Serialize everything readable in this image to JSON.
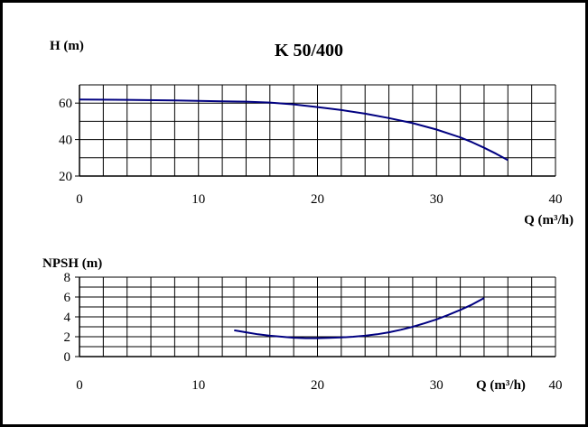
{
  "chart_data": [
    {
      "id": "head",
      "type": "line",
      "title": "K 50/400",
      "ylabel": "H (m)",
      "xlabel": "Q (m³/h)",
      "xlim": [
        0,
        40
      ],
      "ylim": [
        20,
        70
      ],
      "x_ticks": [
        0,
        10,
        20,
        30,
        40
      ],
      "y_ticks": [
        20,
        40,
        60
      ],
      "x_tick_labels": [
        "0",
        "10",
        "20",
        "30",
        "40"
      ],
      "y_tick_labels": [
        "20",
        "40",
        "60"
      ],
      "grid": true,
      "grid_x_step": 2,
      "grid_y_step": 10,
      "line_color": "#000080",
      "series": [
        {
          "x": [
            0,
            4,
            8,
            12,
            14,
            16,
            18,
            20,
            22,
            24,
            26,
            28,
            30,
            32,
            33,
            34,
            35,
            36
          ],
          "y": [
            62,
            61.8,
            61.5,
            61,
            60.8,
            60.3,
            59.3,
            57.8,
            56.2,
            54.2,
            51.8,
            49,
            45.5,
            41.2,
            38.5,
            35.5,
            32.3,
            28.7
          ]
        }
      ]
    },
    {
      "id": "npsh",
      "type": "line",
      "title": "",
      "ylabel": "NPSH (m)",
      "xlabel": "Q (m³/h)",
      "xlim": [
        0,
        40
      ],
      "ylim": [
        0,
        8
      ],
      "x_ticks": [
        0,
        10,
        20,
        30,
        40
      ],
      "y_ticks": [
        0,
        2,
        4,
        6,
        8
      ],
      "x_tick_labels": [
        "0",
        "10",
        "20",
        "30",
        "40"
      ],
      "y_tick_labels": [
        "0",
        "2",
        "4",
        "6",
        "8"
      ],
      "grid": true,
      "grid_x_step": 2,
      "grid_y_step": 1,
      "line_color": "#000080",
      "series": [
        {
          "x": [
            13,
            14,
            15,
            16,
            17,
            18,
            19,
            20,
            21,
            22,
            23,
            24,
            25,
            26,
            27,
            28,
            29,
            30,
            31,
            32,
            33,
            34
          ],
          "y": [
            2.65,
            2.45,
            2.25,
            2.1,
            2.0,
            1.9,
            1.85,
            1.85,
            1.88,
            1.93,
            2.0,
            2.1,
            2.25,
            2.45,
            2.7,
            3.0,
            3.35,
            3.75,
            4.2,
            4.7,
            5.25,
            5.9
          ]
        }
      ]
    }
  ]
}
